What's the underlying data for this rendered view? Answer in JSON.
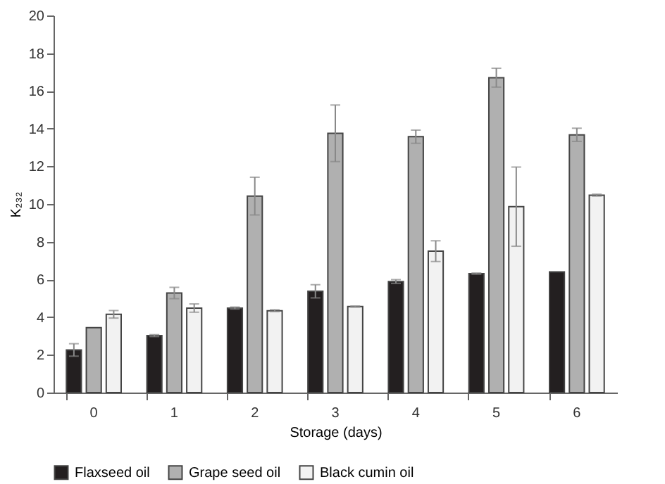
{
  "chart_data": {
    "type": "bar",
    "xlabel": "Storage (days)",
    "ylabel": "K₂₃₂",
    "categories": [
      "0",
      "1",
      "2",
      "3",
      "4",
      "5",
      "6"
    ],
    "series": [
      {
        "name": "Flaxseed oil",
        "color": "#231f20",
        "values": [
          2.26,
          3.02,
          4.48,
          5.37,
          5.89,
          6.31,
          6.4
        ],
        "errors": [
          0.33,
          0.05,
          0.05,
          0.35,
          0.1,
          0.03,
          null
        ]
      },
      {
        "name": "Grape seed oil",
        "color": "#b0b0b0",
        "values": [
          3.44,
          5.28,
          10.42,
          13.75,
          13.57,
          16.7,
          13.67
        ],
        "errors": [
          null,
          0.3,
          1.0,
          1.5,
          0.35,
          0.5,
          0.35
        ]
      },
      {
        "name": "Black cumin oil",
        "color": "#f2f2f2",
        "values": [
          4.15,
          4.48,
          4.34,
          4.56,
          7.5,
          9.86,
          10.47
        ],
        "errors": [
          0.2,
          0.22,
          0.05,
          0.03,
          0.55,
          2.1,
          0.05
        ]
      }
    ],
    "ylim": [
      0,
      20
    ],
    "yticks": [
      0,
      2,
      4,
      6,
      8,
      10,
      12,
      14,
      16,
      18,
      20
    ],
    "grid": false,
    "legend": "bottom"
  }
}
